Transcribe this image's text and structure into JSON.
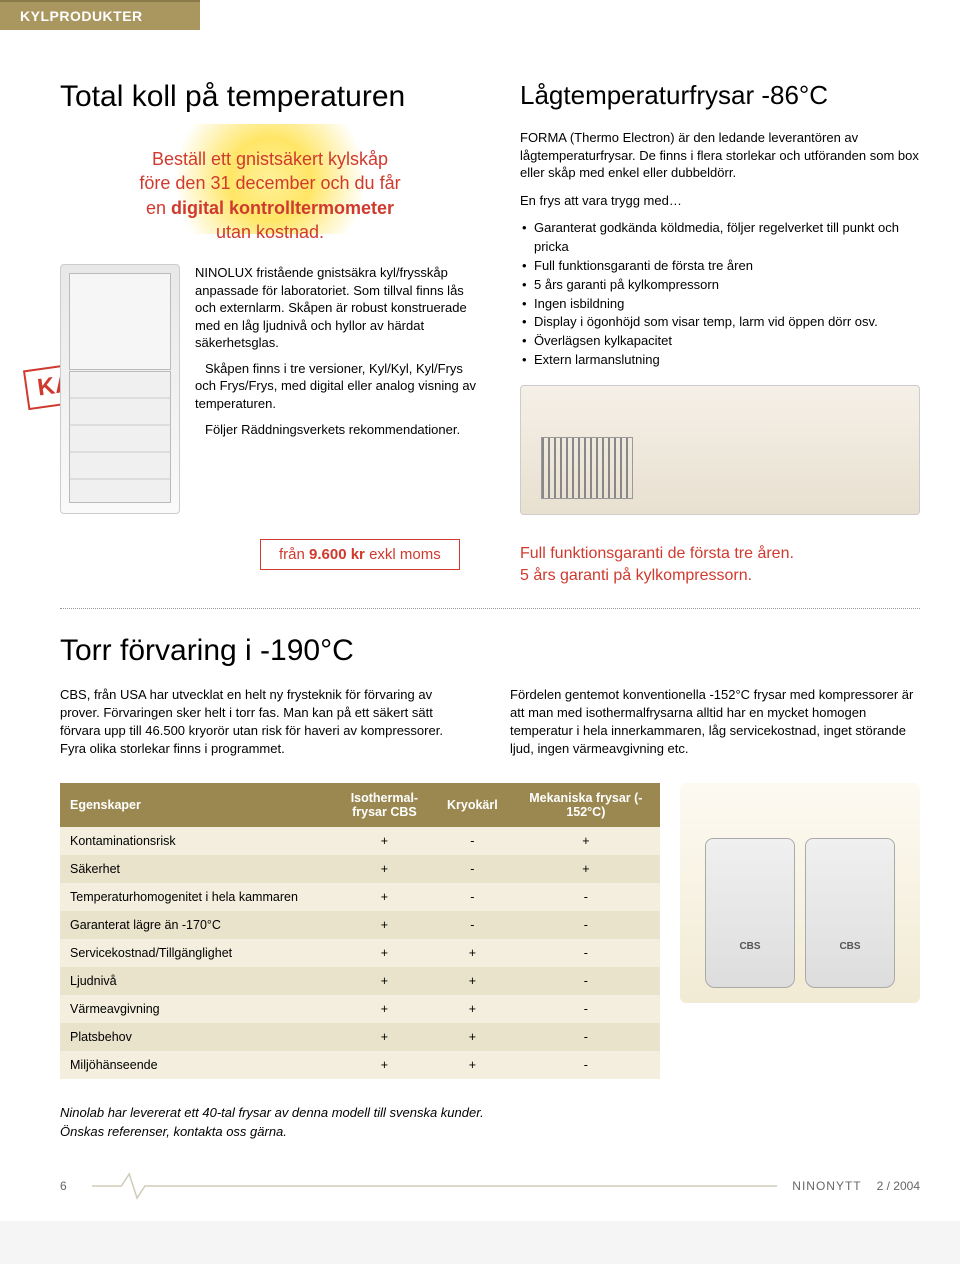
{
  "header": {
    "category": "KYLPRODUKTER"
  },
  "left": {
    "title": "Total koll på temperaturen",
    "promo_line1": "Beställ ett gnistsäkert kylskåp",
    "promo_line2": "före den 31 december och du får",
    "promo_line3_prefix": "en ",
    "promo_line3_bold": "digital kontrolltermometer",
    "promo_line4": "utan kostnad.",
    "stamp": "KAMPANJ!",
    "desc_p1": "NINOLUX fristående gnistsäkra kyl/frysskåp anpassade för laboratoriet. Som tillval finns lås och externlarm. Skåpen är robust konstruerade med en låg ljudnivå och hyllor av härdat säkerhetsglas.",
    "desc_p2": "Skåpen finns i tre versioner, Kyl/Kyl, Kyl/Frys och Frys/Frys, med digital eller analog visning av temperaturen.",
    "desc_p3": "Följer Räddningsverkets rekommendationer.",
    "price_prefix": "från ",
    "price_amount": "9.600 kr",
    "price_suffix": " exkl moms"
  },
  "right": {
    "title": "Lågtemperaturfrysar -86°C",
    "intro": "FORMA (Thermo Electron) är den ledande leverantören av lågtemperaturfrysar. De finns i flera storlekar och utföranden som box eller skåp med enkel eller dubbeldörr.",
    "lead": "En frys att vara trygg med…",
    "bullets": [
      "Garanterat godkända köldmedia, följer regelverket till punkt och pricka",
      "Full funktionsgaranti de första tre åren",
      "5 års garanti på kylkompressorn",
      "Ingen isbildning",
      "Display i ögonhöjd som visar temp, larm vid öppen dörr osv.",
      "Överlägsen kylkapacitet",
      "Extern larmanslutning"
    ],
    "guarantee_l1": "Full funktionsgaranti de första tre åren.",
    "guarantee_l2": "5 års garanti på kylkompressorn."
  },
  "section2": {
    "title": "Torr förvaring i -190°C",
    "col_left": "CBS, från USA har utvecklat en helt ny frysteknik för förvaring av prover. Förvaringen sker helt i torr fas. Man kan på ett säkert sätt förvara upp till 46.500 kryorör utan risk för haveri av kompressorer. Fyra olika storlekar finns i programmet.",
    "col_right": "Fördelen gentemot konventionella -152°C frysar med kompressorer är att man med isothermalfrysarna alltid har en mycket homogen temperatur i hela innerkammaren, låg servicekostnad, inget störande ljud, ingen värmeavgivning etc."
  },
  "table": {
    "headers": [
      "Egenskaper",
      "Isothermal-frysar CBS",
      "Kryokärl",
      "Mekaniska frysar (-152°C)"
    ],
    "header_bg": "#9b8850",
    "row_odd_bg": "#f3eedd",
    "row_even_bg": "#e9e3cc",
    "rows": [
      [
        "Kontaminationsrisk",
        "+",
        "-",
        "+"
      ],
      [
        "Säkerhet",
        "+",
        "-",
        "+"
      ],
      [
        "Temperaturhomogenitet i hela kammaren",
        "+",
        "-",
        "-"
      ],
      [
        "Garanterat lägre än -170°C",
        "+",
        "-",
        "-"
      ],
      [
        "Servicekostnad/Tillgänglighet",
        "+",
        "+",
        "-"
      ],
      [
        "Ljudnivå",
        "+",
        "+",
        "-"
      ],
      [
        "Värmeavgivning",
        "+",
        "+",
        "-"
      ],
      [
        "Platsbehov",
        "+",
        "+",
        "-"
      ],
      [
        "Miljöhänseende",
        "+",
        "+",
        "-"
      ]
    ]
  },
  "footnote": {
    "l1": "Ninolab har levererat ett 40-tal frysar av denna modell till svenska kunder.",
    "l2": "Önskas referenser, kontakta oss gärna."
  },
  "footer": {
    "page": "6",
    "magazine": "NINONYTT",
    "issue": "2 / 2004",
    "pulse_color": "#d0cbb8"
  }
}
